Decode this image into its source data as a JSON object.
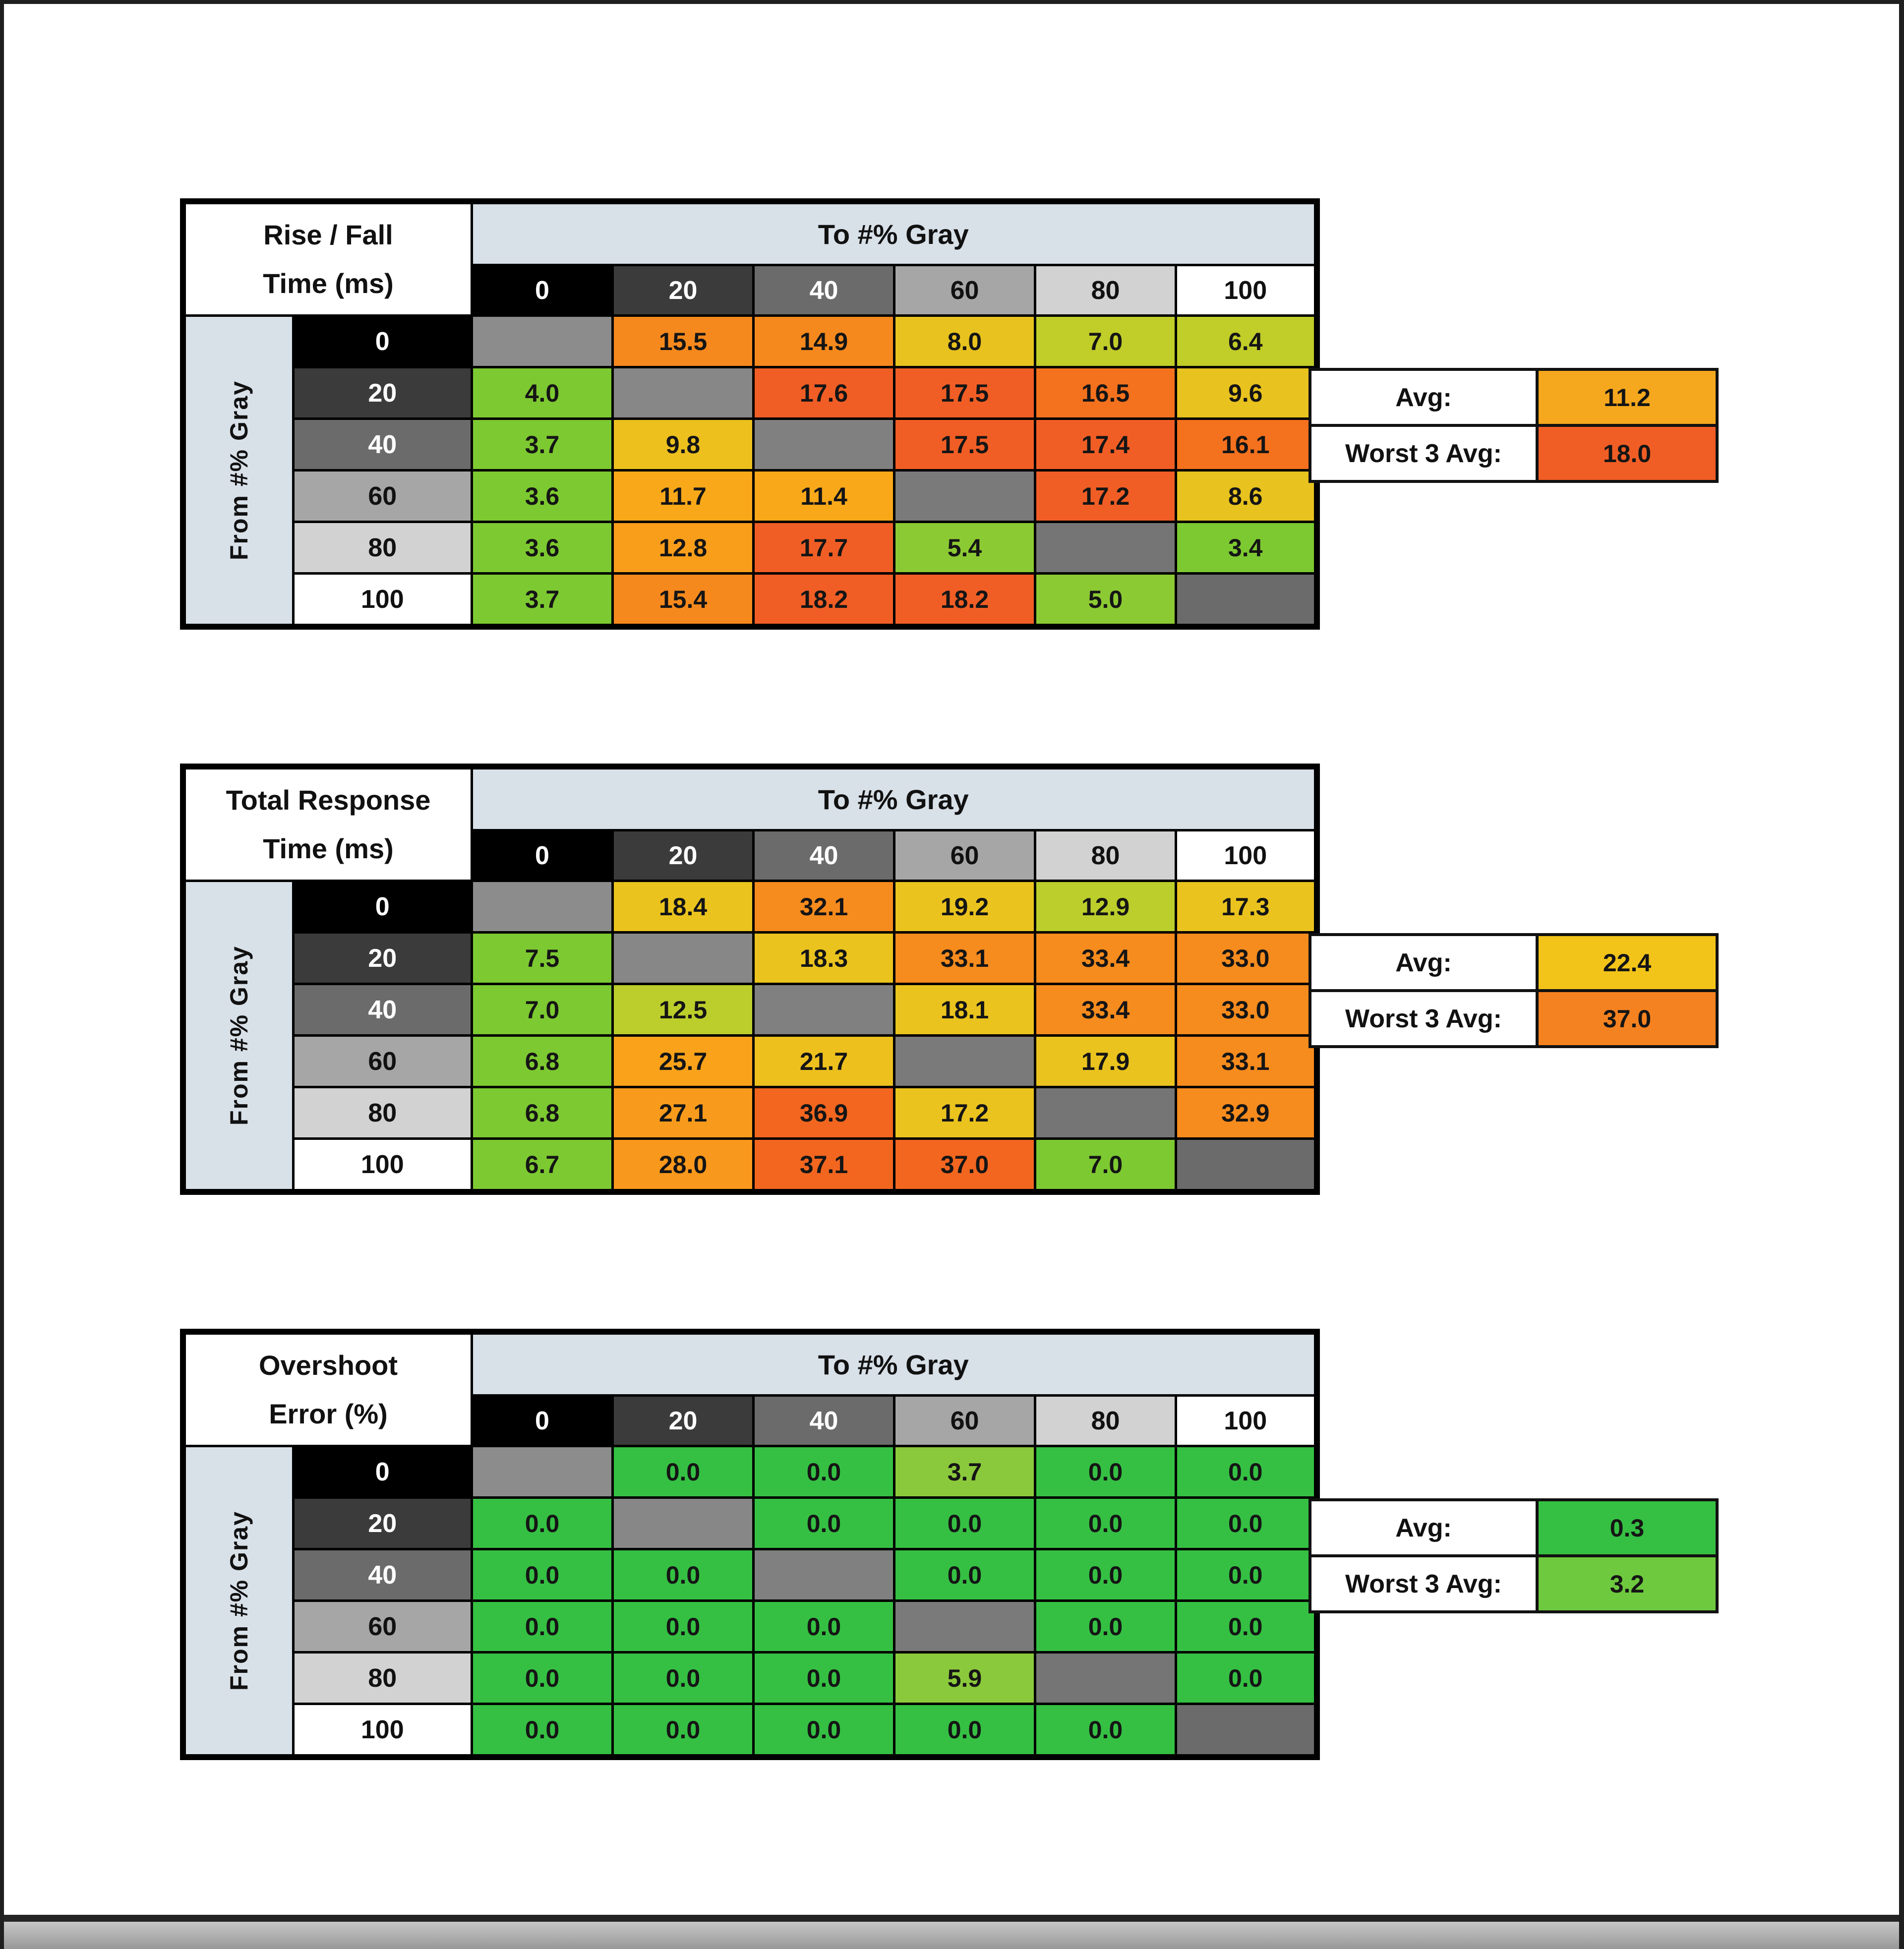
{
  "shared": {
    "to_gray_label": "To #% Gray",
    "from_gray_label": "From #% Gray",
    "avg_label": "Avg:",
    "worst_label": "Worst 3 Avg:",
    "col_headers": [
      "0",
      "20",
      "40",
      "60",
      "80",
      "100"
    ],
    "col_header_bgs": [
      "#000000",
      "#3B3B3B",
      "#6B6B6B",
      "#A6A6A6",
      "#D2D2D2",
      "#FFFFFF"
    ],
    "col_header_fgs": [
      "#FFFFFF",
      "#FFFFFF",
      "#FFFFFF",
      "#111111",
      "#111111",
      "#111111"
    ],
    "row_headers": [
      "0",
      "20",
      "40",
      "60",
      "80",
      "100"
    ],
    "band_color": "#D8E0E8"
  },
  "tables": [
    {
      "title1": "Rise / Fall",
      "title2": "Time (ms)",
      "rows": [
        [
          [
            "",
            "#8C8C8C"
          ],
          [
            "15.5",
            "#F6891D"
          ],
          [
            "14.9",
            "#F6891D"
          ],
          [
            "8.0",
            "#E8C21E"
          ],
          [
            "7.0",
            "#C1CD29"
          ],
          [
            "6.4",
            "#C1CD29"
          ]
        ],
        [
          [
            "4.0",
            "#7DC931"
          ],
          [
            "",
            "#878787"
          ],
          [
            "17.6",
            "#F15E25"
          ],
          [
            "17.5",
            "#F15E25"
          ],
          [
            "16.5",
            "#F4711E"
          ],
          [
            "9.6",
            "#E8C21E"
          ]
        ],
        [
          [
            "3.7",
            "#7DC931"
          ],
          [
            "9.8",
            "#EDC01E"
          ],
          [
            "",
            "#808080"
          ],
          [
            "17.5",
            "#F15E25"
          ],
          [
            "17.4",
            "#F15E25"
          ],
          [
            "16.1",
            "#F4711E"
          ]
        ],
        [
          [
            "3.6",
            "#7DC931"
          ],
          [
            "11.7",
            "#F9A819"
          ],
          [
            "11.4",
            "#F9A819"
          ],
          [
            "",
            "#7A7A7A"
          ],
          [
            "17.2",
            "#F15E25"
          ],
          [
            "8.6",
            "#E8C21E"
          ]
        ],
        [
          [
            "3.6",
            "#7DC931"
          ],
          [
            "12.8",
            "#F89E1B"
          ],
          [
            "17.7",
            "#F15E25"
          ],
          [
            "5.4",
            "#8CCA33"
          ],
          [
            "",
            "#757575"
          ],
          [
            "3.4",
            "#7DC931"
          ]
        ],
        [
          [
            "3.7",
            "#7DC931"
          ],
          [
            "15.4",
            "#F6891D"
          ],
          [
            "18.2",
            "#F15E25"
          ],
          [
            "18.2",
            "#F15E25"
          ],
          [
            "5.0",
            "#8CCA33"
          ],
          [
            "",
            "#6B6B6B"
          ]
        ]
      ],
      "avg": {
        "value": "11.2",
        "color": "#F5A81D"
      },
      "worst": {
        "value": "18.0",
        "color": "#F15E25"
      }
    },
    {
      "title1": "Total Response",
      "title2": "Time (ms)",
      "rows": [
        [
          [
            "",
            "#8C8C8C"
          ],
          [
            "18.4",
            "#EAC31E"
          ],
          [
            "32.1",
            "#F68B1E"
          ],
          [
            "19.2",
            "#EAC31E"
          ],
          [
            "12.9",
            "#BCCE2B"
          ],
          [
            "17.3",
            "#EAC31E"
          ]
        ],
        [
          [
            "7.5",
            "#7DC931"
          ],
          [
            "",
            "#878787"
          ],
          [
            "18.3",
            "#EAC31E"
          ],
          [
            "33.1",
            "#F68B1E"
          ],
          [
            "33.4",
            "#F68B1E"
          ],
          [
            "33.0",
            "#F68B1E"
          ]
        ],
        [
          [
            "7.0",
            "#7DC931"
          ],
          [
            "12.5",
            "#BCCE2B"
          ],
          [
            "",
            "#808080"
          ],
          [
            "18.1",
            "#EAC31E"
          ],
          [
            "33.4",
            "#F68B1E"
          ],
          [
            "33.0",
            "#F68B1E"
          ]
        ],
        [
          [
            "6.8",
            "#7DC931"
          ],
          [
            "25.7",
            "#F9A21A"
          ],
          [
            "21.7",
            "#EDC01E"
          ],
          [
            "",
            "#7A7A7A"
          ],
          [
            "17.9",
            "#EAC31E"
          ],
          [
            "33.1",
            "#F68B1E"
          ]
        ],
        [
          [
            "6.8",
            "#7DC931"
          ],
          [
            "27.1",
            "#F89B1C"
          ],
          [
            "36.9",
            "#F2661F"
          ],
          [
            "17.2",
            "#EAC31E"
          ],
          [
            "",
            "#757575"
          ],
          [
            "32.9",
            "#F68B1E"
          ]
        ],
        [
          [
            "6.7",
            "#7DC931"
          ],
          [
            "28.0",
            "#F8981C"
          ],
          [
            "37.1",
            "#F2661F"
          ],
          [
            "37.0",
            "#F2661F"
          ],
          [
            "7.0",
            "#7DC931"
          ],
          [
            "",
            "#6B6B6B"
          ]
        ]
      ],
      "avg": {
        "value": "22.4",
        "color": "#F2C419"
      },
      "worst": {
        "value": "37.0",
        "color": "#F58220"
      }
    },
    {
      "title1": "Overshoot",
      "title2": "Error (%)",
      "rows": [
        [
          [
            "",
            "#8C8C8C"
          ],
          [
            "0.0",
            "#35C043"
          ],
          [
            "0.0",
            "#35C043"
          ],
          [
            "3.7",
            "#8BC93C"
          ],
          [
            "0.0",
            "#35C043"
          ],
          [
            "0.0",
            "#35C043"
          ]
        ],
        [
          [
            "0.0",
            "#35C043"
          ],
          [
            "",
            "#878787"
          ],
          [
            "0.0",
            "#35C043"
          ],
          [
            "0.0",
            "#35C043"
          ],
          [
            "0.0",
            "#35C043"
          ],
          [
            "0.0",
            "#35C043"
          ]
        ],
        [
          [
            "0.0",
            "#35C043"
          ],
          [
            "0.0",
            "#35C043"
          ],
          [
            "",
            "#808080"
          ],
          [
            "0.0",
            "#35C043"
          ],
          [
            "0.0",
            "#35C043"
          ],
          [
            "0.0",
            "#35C043"
          ]
        ],
        [
          [
            "0.0",
            "#35C043"
          ],
          [
            "0.0",
            "#35C043"
          ],
          [
            "0.0",
            "#35C043"
          ],
          [
            "",
            "#7A7A7A"
          ],
          [
            "0.0",
            "#35C043"
          ],
          [
            "0.0",
            "#35C043"
          ]
        ],
        [
          [
            "0.0",
            "#35C043"
          ],
          [
            "0.0",
            "#35C043"
          ],
          [
            "0.0",
            "#35C043"
          ],
          [
            "5.9",
            "#8BC93C"
          ],
          [
            "",
            "#757575"
          ],
          [
            "0.0",
            "#35C043"
          ]
        ],
        [
          [
            "0.0",
            "#35C043"
          ],
          [
            "0.0",
            "#35C043"
          ],
          [
            "0.0",
            "#35C043"
          ],
          [
            "0.0",
            "#35C043"
          ],
          [
            "0.0",
            "#35C043"
          ],
          [
            "",
            "#6B6B6B"
          ]
        ]
      ],
      "avg": {
        "value": "0.3",
        "color": "#35C043"
      },
      "worst": {
        "value": "3.2",
        "color": "#6EC93E"
      }
    }
  ],
  "chart_data": [
    {
      "type": "heatmap",
      "title": "Rise / Fall Time (ms)",
      "xlabel": "To #% Gray",
      "ylabel": "From #% Gray",
      "x": [
        0,
        20,
        40,
        60,
        80,
        100
      ],
      "y": [
        0,
        20,
        40,
        60,
        80,
        100
      ],
      "values": [
        [
          null,
          15.5,
          14.9,
          8.0,
          7.0,
          6.4
        ],
        [
          4.0,
          null,
          17.6,
          17.5,
          16.5,
          9.6
        ],
        [
          3.7,
          9.8,
          null,
          17.5,
          17.4,
          16.1
        ],
        [
          3.6,
          11.7,
          11.4,
          null,
          17.2,
          8.6
        ],
        [
          3.6,
          12.8,
          17.7,
          5.4,
          null,
          3.4
        ],
        [
          3.7,
          15.4,
          18.2,
          18.2,
          5.0,
          null
        ]
      ],
      "avg": 11.2,
      "worst_3_avg": 18.0
    },
    {
      "type": "heatmap",
      "title": "Total Response Time (ms)",
      "xlabel": "To #% Gray",
      "ylabel": "From #% Gray",
      "x": [
        0,
        20,
        40,
        60,
        80,
        100
      ],
      "y": [
        0,
        20,
        40,
        60,
        80,
        100
      ],
      "values": [
        [
          null,
          18.4,
          32.1,
          19.2,
          12.9,
          17.3
        ],
        [
          7.5,
          null,
          18.3,
          33.1,
          33.4,
          33.0
        ],
        [
          7.0,
          12.5,
          null,
          18.1,
          33.4,
          33.0
        ],
        [
          6.8,
          25.7,
          21.7,
          null,
          17.9,
          33.1
        ],
        [
          6.8,
          27.1,
          36.9,
          17.2,
          null,
          32.9
        ],
        [
          6.7,
          28.0,
          37.1,
          37.0,
          7.0,
          null
        ]
      ],
      "avg": 22.4,
      "worst_3_avg": 37.0
    },
    {
      "type": "heatmap",
      "title": "Overshoot Error (%)",
      "xlabel": "To #% Gray",
      "ylabel": "From #% Gray",
      "x": [
        0,
        20,
        40,
        60,
        80,
        100
      ],
      "y": [
        0,
        20,
        40,
        60,
        80,
        100
      ],
      "values": [
        [
          null,
          0.0,
          0.0,
          3.7,
          0.0,
          0.0
        ],
        [
          0.0,
          null,
          0.0,
          0.0,
          0.0,
          0.0
        ],
        [
          0.0,
          0.0,
          null,
          0.0,
          0.0,
          0.0
        ],
        [
          0.0,
          0.0,
          0.0,
          null,
          0.0,
          0.0
        ],
        [
          0.0,
          0.0,
          0.0,
          5.9,
          null,
          0.0
        ],
        [
          0.0,
          0.0,
          0.0,
          0.0,
          0.0,
          null
        ]
      ],
      "avg": 0.3,
      "worst_3_avg": 3.2
    }
  ]
}
